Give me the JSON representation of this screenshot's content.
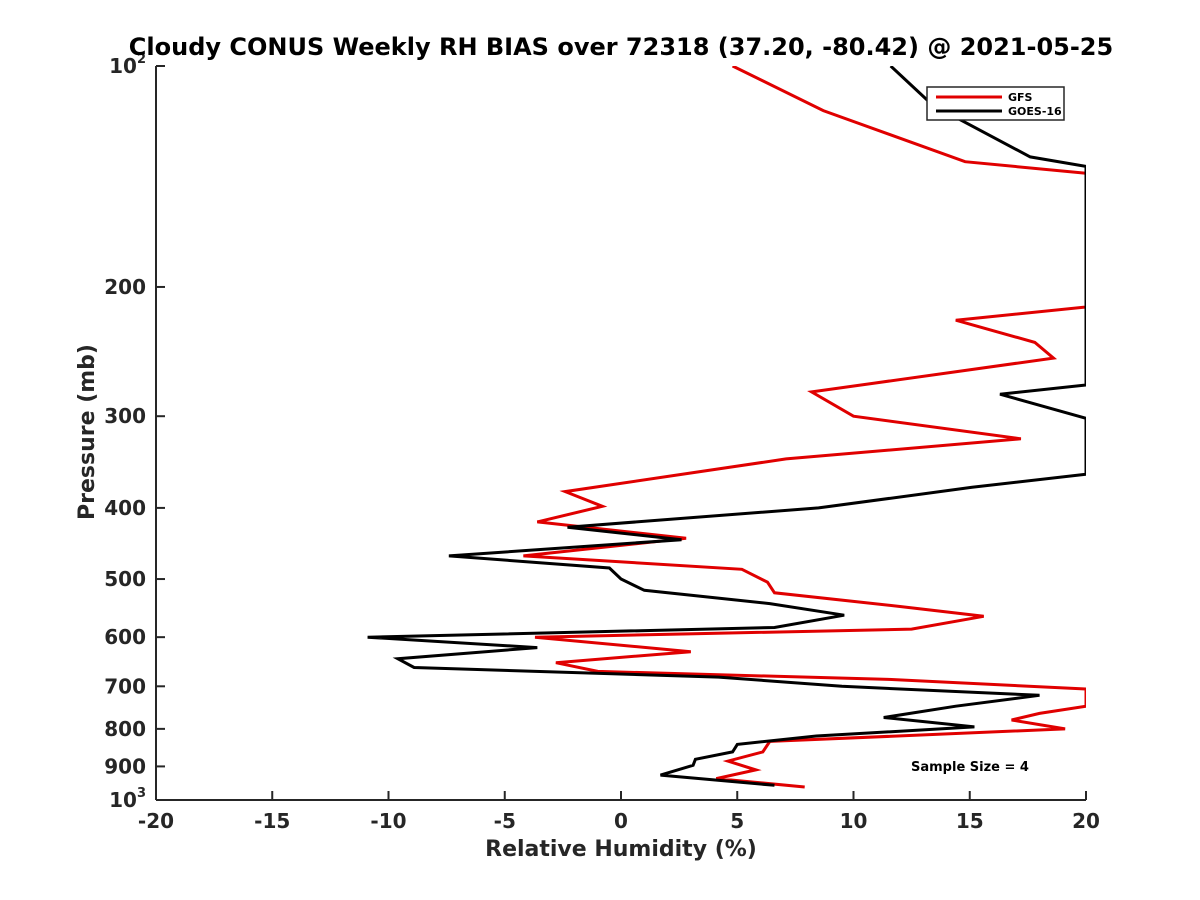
{
  "chart_data": {
    "type": "line",
    "title": "Cloudy CONUS Weekly RH BIAS over 72318 (37.20, -80.42) @ 2021-05-25",
    "xlabel": "Relative Humidity (%)",
    "ylabel": "Pressure (mb)",
    "xlim": [
      -20,
      20
    ],
    "ylim": [
      100,
      1000
    ],
    "yscale": "log",
    "y_reversed": true,
    "grid": false,
    "x_ticks": [
      -20,
      -15,
      -10,
      -5,
      0,
      5,
      10,
      15,
      20
    ],
    "x_tick_labels": [
      "-20",
      "-15",
      "-10",
      "-5",
      "0",
      "5",
      "10",
      "15",
      "20"
    ],
    "y_ticks": [
      100,
      200,
      300,
      400,
      500,
      600,
      700,
      800,
      900,
      1000
    ],
    "y_tick_labels": [
      {
        "base": "10",
        "sup": "2"
      },
      {
        "base": "200",
        "sup": ""
      },
      {
        "base": "300",
        "sup": ""
      },
      {
        "base": "400",
        "sup": ""
      },
      {
        "base": "500",
        "sup": ""
      },
      {
        "base": "600",
        "sup": ""
      },
      {
        "base": "700",
        "sup": ""
      },
      {
        "base": "800",
        "sup": ""
      },
      {
        "base": "900",
        "sup": ""
      },
      {
        "base": "10",
        "sup": "3"
      }
    ],
    "legend_position": "top-right",
    "annotation": "Sample Size = 4",
    "series": [
      {
        "name": "GFS",
        "color": "#e00000",
        "points": [
          [
            4.8,
            100
          ],
          [
            8.7,
            115
          ],
          [
            14.8,
            135
          ],
          [
            20.0,
            140
          ],
          [
            20.0,
            213
          ],
          [
            14.4,
            222
          ],
          [
            17.8,
            238
          ],
          [
            18.6,
            250
          ],
          [
            8.2,
            278
          ],
          [
            10.0,
            300
          ],
          [
            17.2,
            322
          ],
          [
            7.1,
            343
          ],
          [
            -2.4,
            380
          ],
          [
            -0.8,
            398
          ],
          [
            -3.6,
            418
          ],
          [
            2.8,
            440
          ],
          [
            -4.2,
            465
          ],
          [
            5.2,
            485
          ],
          [
            6.3,
            505
          ],
          [
            6.6,
            522
          ],
          [
            12.0,
            545
          ],
          [
            15.6,
            562
          ],
          [
            12.5,
            585
          ],
          [
            -3.7,
            600
          ],
          [
            3.0,
            628
          ],
          [
            -2.8,
            650
          ],
          [
            -1.0,
            668
          ],
          [
            11.5,
            685
          ],
          [
            20.0,
            706
          ],
          [
            20.0,
            745
          ],
          [
            18.0,
            762
          ],
          [
            16.8,
            778
          ],
          [
            19.1,
            800
          ],
          [
            6.4,
            832
          ],
          [
            6.1,
            860
          ],
          [
            4.6,
            885
          ],
          [
            5.8,
            910
          ],
          [
            4.1,
            935
          ],
          [
            7.9,
            960
          ]
        ]
      },
      {
        "name": "GOES-16",
        "color": "#000000",
        "points": [
          [
            11.6,
            100
          ],
          [
            13.4,
            113
          ],
          [
            17.6,
            133
          ],
          [
            20.0,
            137
          ],
          [
            20.0,
            272
          ],
          [
            16.3,
            280
          ],
          [
            20.0,
            302
          ],
          [
            20.0,
            360
          ],
          [
            15.1,
            375
          ],
          [
            8.5,
            400
          ],
          [
            -2.3,
            425
          ],
          [
            2.6,
            442
          ],
          [
            -7.4,
            465
          ],
          [
            -0.5,
            483
          ],
          [
            0.0,
            500
          ],
          [
            1.0,
            518
          ],
          [
            6.4,
            540
          ],
          [
            9.6,
            560
          ],
          [
            6.6,
            582
          ],
          [
            -10.9,
            600
          ],
          [
            -3.6,
            620
          ],
          [
            -9.6,
            642
          ],
          [
            -8.9,
            660
          ],
          [
            4.2,
            680
          ],
          [
            9.5,
            700
          ],
          [
            18.0,
            720
          ],
          [
            14.4,
            745
          ],
          [
            11.3,
            772
          ],
          [
            15.2,
            795
          ],
          [
            8.4,
            818
          ],
          [
            5.0,
            840
          ],
          [
            4.8,
            860
          ],
          [
            3.2,
            880
          ],
          [
            3.1,
            897
          ],
          [
            1.7,
            925
          ],
          [
            6.6,
            955
          ]
        ]
      }
    ]
  }
}
